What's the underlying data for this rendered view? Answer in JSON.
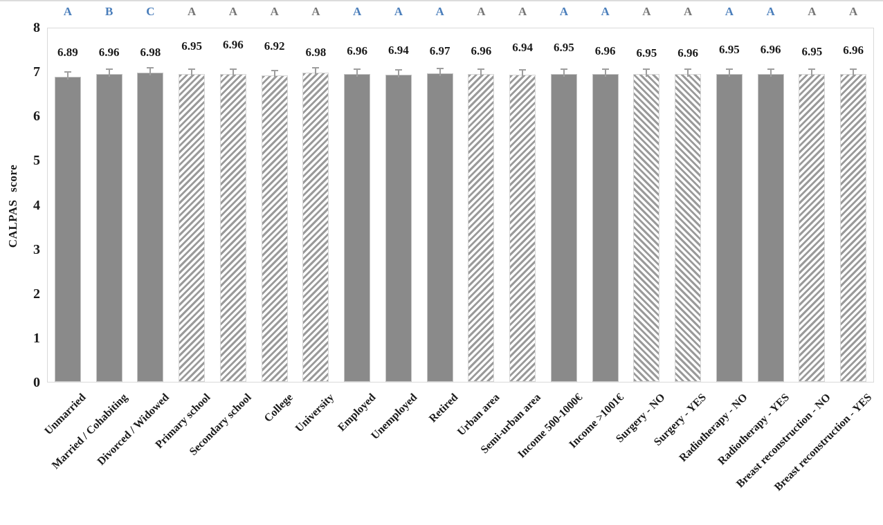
{
  "chart_data": {
    "type": "bar",
    "title": "",
    "xlabel": "",
    "ylabel": "CALPAS score",
    "ylim": [
      0,
      8
    ],
    "yticks": [
      0,
      1,
      2,
      3,
      4,
      5,
      6,
      7,
      8
    ],
    "grid": false,
    "legend": "none",
    "error_bars": true,
    "letter_colors": {
      "blue": "#4a7ebb",
      "gray": "#767676"
    },
    "bar_colors": {
      "solid_fill": "#8a8a8a",
      "hatch_stripe": "#9a9a9a",
      "plot_border": "#d9d9d9"
    },
    "bars": [
      {
        "category": "Unmarried",
        "value": 6.89,
        "label": "6.89",
        "letter": "A",
        "letter_color": "blue",
        "pattern": "solid",
        "label_dy": 4
      },
      {
        "category": "Married / Cohabiting",
        "value": 6.96,
        "label": "6.96",
        "letter": "B",
        "letter_color": "blue",
        "pattern": "solid",
        "label_dy": 4
      },
      {
        "category": "Divorced / Widowed",
        "value": 6.98,
        "label": "6.98",
        "letter": "C",
        "letter_color": "blue",
        "pattern": "solid",
        "label_dy": 4
      },
      {
        "category": "Primary school",
        "value": 6.95,
        "label": "6.95",
        "letter": "A",
        "letter_color": "gray",
        "pattern": "hatch_fwd",
        "label_dy": -5
      },
      {
        "category": "Secondary school",
        "value": 6.96,
        "label": "6.96",
        "letter": "A",
        "letter_color": "gray",
        "pattern": "hatch_fwd",
        "label_dy": -7
      },
      {
        "category": "College",
        "value": 6.92,
        "label": "6.92",
        "letter": "A",
        "letter_color": "gray",
        "pattern": "hatch_fwd",
        "label_dy": -5
      },
      {
        "category": "University",
        "value": 6.98,
        "label": "6.98",
        "letter": "A",
        "letter_color": "gray",
        "pattern": "hatch_fwd",
        "label_dy": 4
      },
      {
        "category": "Employed",
        "value": 6.96,
        "label": "6.96",
        "letter": "A",
        "letter_color": "blue",
        "pattern": "solid",
        "label_dy": 2
      },
      {
        "category": "Unemployed",
        "value": 6.94,
        "label": "6.94",
        "letter": "A",
        "letter_color": "blue",
        "pattern": "solid",
        "label_dy": 1
      },
      {
        "category": "Retired",
        "value": 6.97,
        "label": "6.97",
        "letter": "A",
        "letter_color": "blue",
        "pattern": "solid",
        "label_dy": 2
      },
      {
        "category": "Urban area",
        "value": 6.96,
        "label": "6.96",
        "letter": "A",
        "letter_color": "gray",
        "pattern": "hatch_fwd",
        "label_dy": 2
      },
      {
        "category": "Semi-urban area",
        "value": 6.94,
        "label": "6.94",
        "letter": "A",
        "letter_color": "gray",
        "pattern": "hatch_fwd",
        "label_dy": -3
      },
      {
        "category": "Income 500-1000€",
        "value": 6.95,
        "label": "6.95",
        "letter": "A",
        "letter_color": "blue",
        "pattern": "solid",
        "label_dy": -3
      },
      {
        "category": "Income >1001€",
        "value": 6.96,
        "label": "6.96",
        "letter": "A",
        "letter_color": "blue",
        "pattern": "solid",
        "label_dy": 2
      },
      {
        "category": "Surgery - NO",
        "value": 6.95,
        "label": "6.95",
        "letter": "A",
        "letter_color": "gray",
        "pattern": "hatch_back",
        "label_dy": 5
      },
      {
        "category": "Surgery - YES",
        "value": 6.96,
        "label": "6.96",
        "letter": "A",
        "letter_color": "gray",
        "pattern": "hatch_back",
        "label_dy": 5
      },
      {
        "category": "Radiotherapy - NO",
        "value": 6.95,
        "label": "6.95",
        "letter": "A",
        "letter_color": "blue",
        "pattern": "solid",
        "label_dy": 0
      },
      {
        "category": "Radiotherapy - YES",
        "value": 6.96,
        "label": "6.96",
        "letter": "A",
        "letter_color": "blue",
        "pattern": "solid",
        "label_dy": 0
      },
      {
        "category": "Breast reconstruction - NO",
        "value": 6.95,
        "label": "6.95",
        "letter": "A",
        "letter_color": "gray",
        "pattern": "hatch_fwd",
        "label_dy": 3
      },
      {
        "category": "Breast reconstruction - YES",
        "value": 6.96,
        "label": "6.96",
        "letter": "A",
        "letter_color": "gray",
        "pattern": "hatch_fwd",
        "label_dy": 1
      }
    ]
  }
}
